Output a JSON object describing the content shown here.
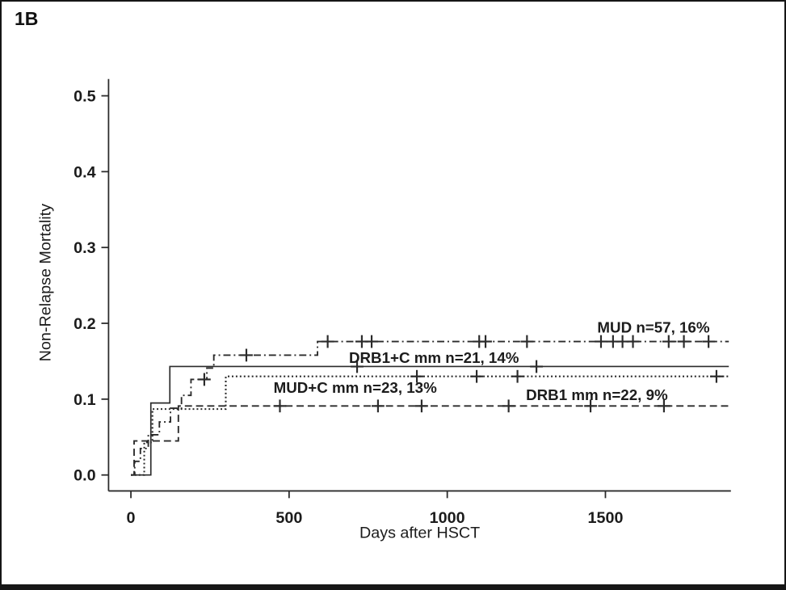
{
  "figure_label": "1B",
  "chart_data": {
    "type": "line",
    "subtype": "cumulative-incidence-step-curves",
    "title": "",
    "xlabel": "Days after HSCT",
    "ylabel": "Non-Relapse Mortality",
    "xlim": [
      0,
      1890
    ],
    "ylim": [
      0,
      0.5
    ],
    "xticks": [
      0,
      500,
      1000,
      1500
    ],
    "xtick_labels": [
      "0",
      "500",
      "1000",
      "1500"
    ],
    "yticks": [
      0.0,
      0.1,
      0.2,
      0.3,
      0.4,
      0.5
    ],
    "ytick_labels": [
      "0.0",
      "0.1",
      "0.2",
      "0.3",
      "0.4",
      "0.5"
    ],
    "grid": false,
    "legend_position": "inline-curve-labels",
    "line_color": "#2b2b2b",
    "series": [
      {
        "name": "MUD",
        "label": "MUD n=57, 16%",
        "n": 57,
        "final_value": 0.176,
        "line_style": "dashdot",
        "steps": [
          [
            0,
            0
          ],
          [
            12,
            0.018
          ],
          [
            30,
            0.035
          ],
          [
            55,
            0.053
          ],
          [
            90,
            0.07
          ],
          [
            125,
            0.088
          ],
          [
            160,
            0.105
          ],
          [
            190,
            0.126
          ],
          [
            240,
            0.141
          ],
          [
            262,
            0.158
          ],
          [
            590,
            0.176
          ]
        ],
        "end_day": 1890,
        "censor_days": [
          232,
          365,
          622,
          730,
          761,
          1101,
          1121,
          1252,
          1486,
          1524,
          1554,
          1587,
          1700,
          1748,
          1826
        ],
        "label_pos": [
          1652,
          0.195
        ]
      },
      {
        "name": "DRB1+C mm",
        "label": "DRB1+C mm n=21, 14%",
        "n": 21,
        "final_value": 0.143,
        "line_style": "solid",
        "steps": [
          [
            0,
            0
          ],
          [
            63,
            0.095
          ],
          [
            123,
            0.143
          ]
        ],
        "end_day": 1890,
        "censor_days": [
          715,
          1282
        ],
        "label_pos": [
          958,
          0.155
        ]
      },
      {
        "name": "MUD+C mm",
        "label": "MUD+C mm n=23, 13%",
        "n": 23,
        "final_value": 0.13,
        "line_style": "dotted",
        "steps": [
          [
            0,
            0
          ],
          [
            42,
            0.043
          ],
          [
            68,
            0.087
          ],
          [
            300,
            0.13
          ]
        ],
        "end_day": 1890,
        "censor_days": [
          904,
          1093,
          1222,
          1851
        ],
        "label_pos": [
          709,
          0.116
        ]
      },
      {
        "name": "DRB1 mm",
        "label": "DRB1 mm n=22, 9%",
        "n": 22,
        "final_value": 0.091,
        "line_style": "dashed",
        "steps": [
          [
            0,
            0
          ],
          [
            10,
            0.045
          ],
          [
            150,
            0.091
          ]
        ],
        "end_day": 1890,
        "censor_days": [
          471,
          781,
          919,
          1194,
          1453,
          1685
        ],
        "label_pos": [
          1473,
          0.106
        ]
      }
    ]
  }
}
